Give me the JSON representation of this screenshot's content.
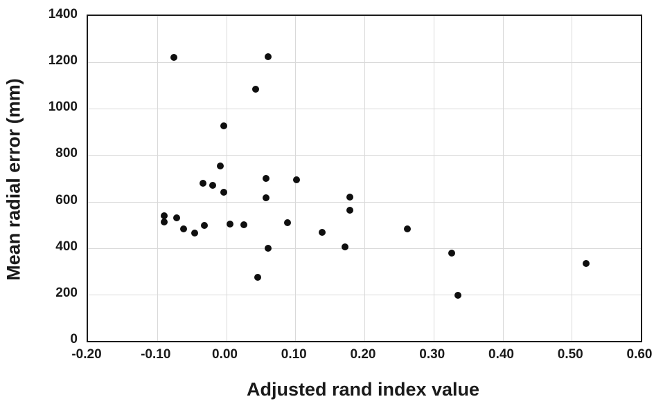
{
  "figure": {
    "background": "#ffffff",
    "text_color": "#1a1a1a",
    "border_color": "#1a1a1a"
  },
  "chart_data": {
    "type": "scatter",
    "title": "",
    "xlabel": "Adjusted rand index value",
    "ylabel": "Mean radial error (mm)",
    "xlim": [
      -0.2,
      0.6
    ],
    "ylim": [
      0,
      1400
    ],
    "x_tick_values": [
      -0.2,
      -0.1,
      0.0,
      0.1,
      0.2,
      0.3,
      0.4,
      0.5,
      0.6
    ],
    "x_tick_labels": [
      "-0.20",
      "-0.10",
      "0.00",
      "0.10",
      "0.20",
      "0.30",
      "0.40",
      "0.50",
      "0.60"
    ],
    "y_tick_values": [
      0,
      200,
      400,
      600,
      800,
      1000,
      1200,
      1400
    ],
    "y_tick_labels": [
      "0",
      "200",
      "400",
      "600",
      "800",
      "1000",
      "1200",
      "1400"
    ],
    "grid": true,
    "gridline_color": "#d9d9d9",
    "legend_position": "none",
    "marker": "circle",
    "marker_color": "#0f0f0f",
    "points": [
      {
        "x": -0.076,
        "y": 1220
      },
      {
        "x": 0.061,
        "y": 1225
      },
      {
        "x": 0.043,
        "y": 1085
      },
      {
        "x": -0.004,
        "y": 925
      },
      {
        "x": -0.009,
        "y": 755
      },
      {
        "x": -0.034,
        "y": 680
      },
      {
        "x": -0.02,
        "y": 670
      },
      {
        "x": -0.004,
        "y": 640
      },
      {
        "x": 0.058,
        "y": 700
      },
      {
        "x": 0.102,
        "y": 695
      },
      {
        "x": 0.058,
        "y": 617
      },
      {
        "x": -0.09,
        "y": 540
      },
      {
        "x": -0.09,
        "y": 513
      },
      {
        "x": -0.072,
        "y": 530
      },
      {
        "x": -0.062,
        "y": 483
      },
      {
        "x": -0.046,
        "y": 464
      },
      {
        "x": -0.032,
        "y": 496
      },
      {
        "x": 0.006,
        "y": 503
      },
      {
        "x": 0.026,
        "y": 500
      },
      {
        "x": 0.089,
        "y": 510
      },
      {
        "x": 0.061,
        "y": 400
      },
      {
        "x": 0.046,
        "y": 275
      },
      {
        "x": 0.179,
        "y": 620
      },
      {
        "x": 0.179,
        "y": 562
      },
      {
        "x": 0.139,
        "y": 467
      },
      {
        "x": 0.172,
        "y": 406
      },
      {
        "x": 0.262,
        "y": 483
      },
      {
        "x": 0.326,
        "y": 377
      },
      {
        "x": 0.335,
        "y": 196
      },
      {
        "x": 0.521,
        "y": 334
      }
    ]
  }
}
